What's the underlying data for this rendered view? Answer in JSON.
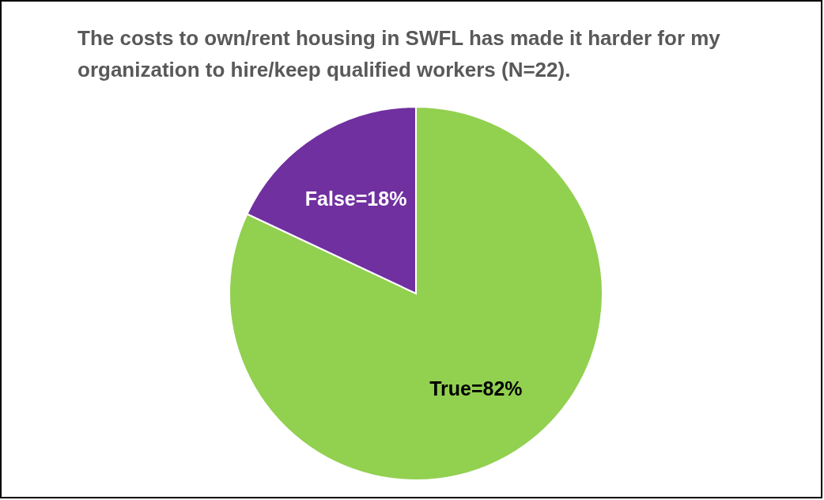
{
  "chart_data": {
    "type": "pie",
    "title": "The costs to own/rent housing in SWFL has made it harder for my organization to hire/keep qualified workers (N=22).",
    "categories": [
      "True=82%",
      "False=18%"
    ],
    "values": [
      82,
      18
    ],
    "colors": [
      "#92d050",
      "#7030a0"
    ]
  }
}
